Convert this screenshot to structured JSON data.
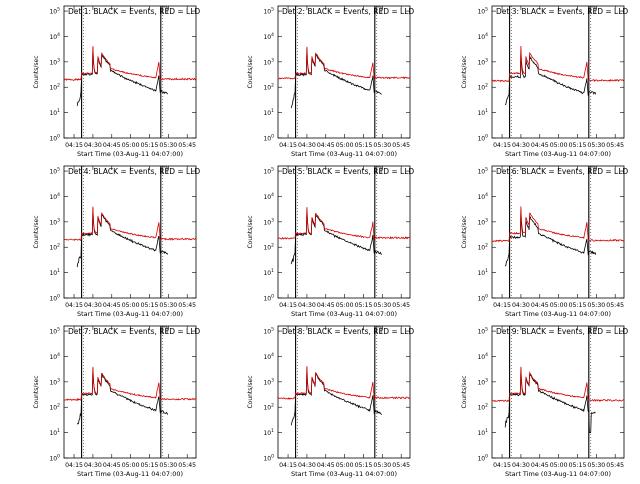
{
  "chart_data": [
    {
      "type": "line",
      "title": "Det 1: BLACK = Events, RED = LLD",
      "variant": 1
    },
    {
      "type": "line",
      "title": "Det 2: BLACK = Events, RED = LLD",
      "variant": 2
    },
    {
      "type": "line",
      "title": "Det 3: BLACK = Events, RED = LLD",
      "variant": 3
    },
    {
      "type": "line",
      "title": "Det 4: BLACK = Events, RED = LLD",
      "variant": 4
    },
    {
      "type": "line",
      "title": "Det 5: BLACK = Events, RED = LLD",
      "variant": 5
    },
    {
      "type": "line",
      "title": "Det 6: BLACK = Events, RED = LLD",
      "variant": 6
    },
    {
      "type": "line",
      "title": "Det 7: BLACK = Events, RED = LLD",
      "variant": 7
    },
    {
      "type": "line",
      "title": "Det 8: BLACK = Events, RED = LLD",
      "variant": 8
    },
    {
      "type": "line",
      "title": "Det 9: BLACK = Events, RED = LLD",
      "variant": 9
    }
  ],
  "shared": {
    "xlabel": "Start Time (03-Aug-11 04:07:00)",
    "ylabel": "Counts/sec",
    "xticks": [
      "04:15",
      "04:30",
      "04:45",
      "05:00",
      "05:15",
      "05:30",
      "05:45"
    ],
    "xtick_minutes": [
      15,
      30,
      45,
      60,
      75,
      90,
      105
    ],
    "xlim_minutes": [
      7,
      112
    ],
    "yticks": [
      "10^0",
      "10^1",
      "10^2",
      "10^3",
      "10^4",
      "10^5"
    ],
    "ylim_log10": [
      0,
      5.2
    ],
    "vlines_minutes": [
      21,
      84
    ],
    "marker_minute": 85,
    "series_names": [
      "Events",
      "LLD"
    ],
    "colors": {
      "events": "#000000",
      "lld": "#d40000",
      "axis": "#000000"
    }
  }
}
